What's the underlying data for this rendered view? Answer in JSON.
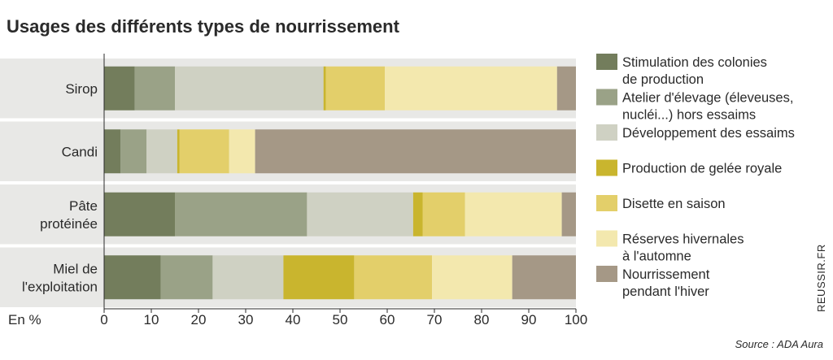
{
  "title": "Usages des différents types de nourrissement",
  "unit_label": "En %",
  "source": "Source : ADA Aura",
  "credit": "REUSSIR.FR",
  "colors": {
    "background": "#ffffff",
    "band": "#e8e8e6",
    "text": "#2a2a2a"
  },
  "chart_data": {
    "type": "bar",
    "orientation": "horizontal",
    "stacked": true,
    "xlabel": "En %",
    "xlim": [
      0,
      100
    ],
    "xticks": [
      0,
      10,
      20,
      30,
      40,
      50,
      60,
      70,
      80,
      90,
      100
    ],
    "legend_position": "right",
    "categories": [
      [
        "Sirop"
      ],
      [
        "Candi"
      ],
      [
        "Pâte",
        "protéinée"
      ],
      [
        "Miel de",
        "l'exploitation"
      ]
    ],
    "series": [
      {
        "name": [
          "Stimulation des colonies",
          "de production"
        ],
        "color": "#737d5c",
        "values": [
          6.5,
          3.5,
          15,
          12
        ]
      },
      {
        "name": [
          "Atelier d'élevage (éleveuses,",
          "nucléi...) hors essaims"
        ],
        "color": "#9aa287",
        "values": [
          8.5,
          5.5,
          28,
          11
        ]
      },
      {
        "name": [
          "Développement des essaims"
        ],
        "color": "#cfd1c3",
        "values": [
          31.5,
          6.5,
          22.5,
          15
        ]
      },
      {
        "name": [
          "Production de gelée royale"
        ],
        "color": "#c9b52e",
        "values": [
          0.5,
          0.5,
          2,
          15
        ]
      },
      {
        "name": [
          "Disette en saison"
        ],
        "color": "#e3cf6a",
        "values": [
          12.5,
          10.5,
          9,
          16.5
        ]
      },
      {
        "name": [
          "Réserves hivernales",
          "à l'automne"
        ],
        "color": "#f3e8ae",
        "values": [
          36.5,
          5.5,
          20.5,
          17
        ]
      },
      {
        "name": [
          "Nourrissement",
          "pendant l'hiver"
        ],
        "color": "#a59886",
        "values": [
          4,
          68,
          3,
          13.5
        ]
      }
    ]
  }
}
